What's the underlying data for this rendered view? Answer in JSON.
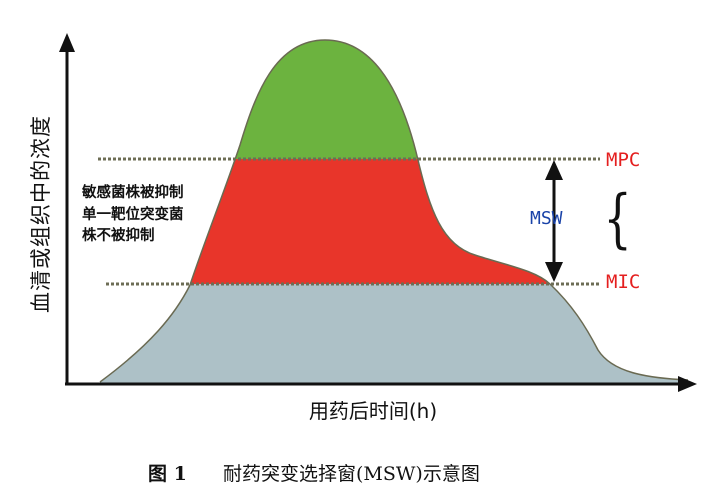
{
  "axes": {
    "y_label": "血清或组织中的浓度",
    "x_label": "用药后时间(h)"
  },
  "labels": {
    "mpc": "MPC",
    "mic": "MIC",
    "msw": "MSW",
    "bracket": "{"
  },
  "annotation": {
    "line1": "敏感菌株被抑制",
    "line2": "单一靶位突变菌",
    "line3": "株不被抑制"
  },
  "caption": {
    "figure_number": "图 1",
    "title": "耐药突变选择窗(MSW)示意图"
  },
  "colors": {
    "above_mpc": "#6cb33f",
    "mutant_selection_window": "#e8352a",
    "below_mic": "#adc1c7",
    "mpc_label": "#e41f1f",
    "msw_label": "#1a43a8"
  }
}
